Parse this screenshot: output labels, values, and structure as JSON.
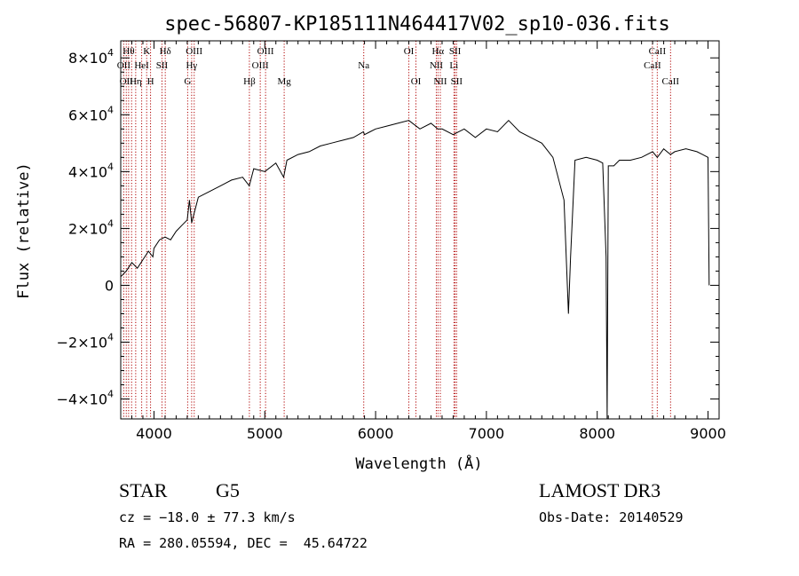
{
  "chart_data": {
    "type": "line",
    "title": "spec-56807-KP185111N464417V02_sp10-036.fits",
    "xlabel": "Wavelength (Å)",
    "ylabel": "Flux (relative)",
    "xlim": [
      3700,
      9100
    ],
    "ylim": [
      -47000,
      86000
    ],
    "grid": false,
    "x_ticks": [
      4000,
      5000,
      6000,
      7000,
      8000,
      9000
    ],
    "x_tick_labels": [
      "4000",
      "5000",
      "6000",
      "7000",
      "8000",
      "9000"
    ],
    "y_ticks": [
      {
        "value": 80000,
        "mantissa": "8×10",
        "exp": "4"
      },
      {
        "value": 60000,
        "mantissa": "6×10",
        "exp": "4"
      },
      {
        "value": 40000,
        "mantissa": "4×10",
        "exp": "4"
      },
      {
        "value": 20000,
        "mantissa": "2×10",
        "exp": "4"
      },
      {
        "value": 0,
        "mantissa": "0",
        "exp": ""
      },
      {
        "value": -20000,
        "mantissa": "−2×10",
        "exp": "4"
      },
      {
        "value": -40000,
        "mantissa": "−4×10",
        "exp": "4"
      }
    ],
    "series": [
      {
        "color": "#000000",
        "x": [
          3700,
          3750,
          3800,
          3850,
          3900,
          3950,
          3990,
          4000,
          4050,
          4100,
          4150,
          4200,
          4250,
          4300,
          4320,
          4340,
          4400,
          4500,
          4600,
          4700,
          4800,
          4860,
          4900,
          5000,
          5100,
          5170,
          5200,
          5300,
          5400,
          5500,
          5600,
          5700,
          5800,
          5890,
          5900,
          5950,
          6000,
          6100,
          6200,
          6300,
          6400,
          6500,
          6560,
          6600,
          6700,
          6800,
          6900,
          7000,
          7100,
          7200,
          7300,
          7400,
          7500,
          7600,
          7700,
          7740,
          7760,
          7800,
          7900,
          8000,
          8050,
          8080,
          8090,
          8100,
          8150,
          8200,
          8300,
          8400,
          8500,
          8542,
          8600,
          8662,
          8700,
          8800,
          8900,
          8950,
          9000,
          9010
        ],
        "y": [
          3000,
          5000,
          8000,
          6000,
          9000,
          12000,
          10000,
          13000,
          16000,
          17000,
          16000,
          19000,
          21000,
          23000,
          30000,
          22000,
          31000,
          33000,
          35000,
          37000,
          38000,
          35000,
          41000,
          40000,
          43000,
          38000,
          44000,
          46000,
          47000,
          49000,
          50000,
          51000,
          52000,
          54000,
          53000,
          54000,
          55000,
          56000,
          57000,
          58000,
          55000,
          57000,
          55000,
          55000,
          53000,
          55000,
          52000,
          55000,
          54000,
          58000,
          54000,
          52000,
          50000,
          45000,
          30000,
          -10000,
          10000,
          44000,
          45000,
          44000,
          43000,
          10000,
          -47000,
          42000,
          42000,
          44000,
          44000,
          45000,
          47000,
          45000,
          48000,
          46000,
          47000,
          48000,
          47000,
          46000,
          45000,
          0
        ]
      }
    ],
    "lines": [
      {
        "w": 3727,
        "labels": [
          {
            "text": "OII",
            "row": 2
          }
        ]
      },
      {
        "w": 3750,
        "labels": [
          {
            "text": "OII",
            "row": 3
          }
        ]
      },
      {
        "w": 3771,
        "labels": [
          {
            "text": "Hθ",
            "row": 1
          }
        ]
      },
      {
        "w": 3798,
        "labels": []
      },
      {
        "w": 3835,
        "labels": [
          {
            "text": "Hη",
            "row": 3
          }
        ]
      },
      {
        "w": 3889,
        "labels": [
          {
            "text": "HeI",
            "row": 2
          }
        ]
      },
      {
        "w": 3934,
        "labels": [
          {
            "text": "K",
            "row": 1
          }
        ]
      },
      {
        "w": 3969,
        "labels": [
          {
            "text": "H",
            "row": 3
          }
        ]
      },
      {
        "w": 4072,
        "labels": [
          {
            "text": "SII",
            "row": 2
          }
        ]
      },
      {
        "w": 4102,
        "labels": [
          {
            "text": "Hδ",
            "row": 1
          }
        ]
      },
      {
        "w": 4304,
        "labels": [
          {
            "text": "G",
            "row": 3
          }
        ]
      },
      {
        "w": 4340,
        "labels": [
          {
            "text": "Hγ",
            "row": 2
          }
        ]
      },
      {
        "w": 4363,
        "labels": [
          {
            "text": "OIII",
            "row": 1
          }
        ]
      },
      {
        "w": 4861,
        "labels": [
          {
            "text": "Hβ",
            "row": 3
          }
        ]
      },
      {
        "w": 4959,
        "labels": [
          {
            "text": "OIII",
            "row": 2
          }
        ]
      },
      {
        "w": 5007,
        "labels": [
          {
            "text": "OIII",
            "row": 1
          }
        ]
      },
      {
        "w": 5175,
        "labels": [
          {
            "text": "Mg",
            "row": 3
          }
        ]
      },
      {
        "w": 5893,
        "labels": [
          {
            "text": "Na",
            "row": 2
          }
        ]
      },
      {
        "w": 6300,
        "labels": [
          {
            "text": "OI",
            "row": 1
          }
        ]
      },
      {
        "w": 6364,
        "labels": [
          {
            "text": "OI",
            "row": 3
          }
        ]
      },
      {
        "w": 6548,
        "labels": [
          {
            "text": "NII",
            "row": 2
          }
        ]
      },
      {
        "w": 6563,
        "labels": [
          {
            "text": "Hα",
            "row": 1
          }
        ]
      },
      {
        "w": 6584,
        "labels": [
          {
            "text": "NII",
            "row": 3
          }
        ]
      },
      {
        "w": 6707,
        "labels": [
          {
            "text": "Li",
            "row": 2
          }
        ]
      },
      {
        "w": 6717,
        "labels": [
          {
            "text": "SII",
            "row": 1
          }
        ]
      },
      {
        "w": 6731,
        "labels": [
          {
            "text": "SII",
            "row": 3
          }
        ]
      },
      {
        "w": 8498,
        "labels": [
          {
            "text": "CaII",
            "row": 2
          }
        ]
      },
      {
        "w": 8542,
        "labels": [
          {
            "text": "CaII",
            "row": 1
          }
        ]
      },
      {
        "w": 8662,
        "labels": [
          {
            "text": "CaII",
            "row": 3
          }
        ]
      }
    ]
  },
  "footer": {
    "object_class": "STAR",
    "subclass": "G5",
    "survey": "LAMOST DR3",
    "redshift": "cz = −18.0 ± 77.3 km/s",
    "obs_date": "Obs-Date: 20140529",
    "coords": "RA = 280.05594, DEC =  45.64722"
  }
}
